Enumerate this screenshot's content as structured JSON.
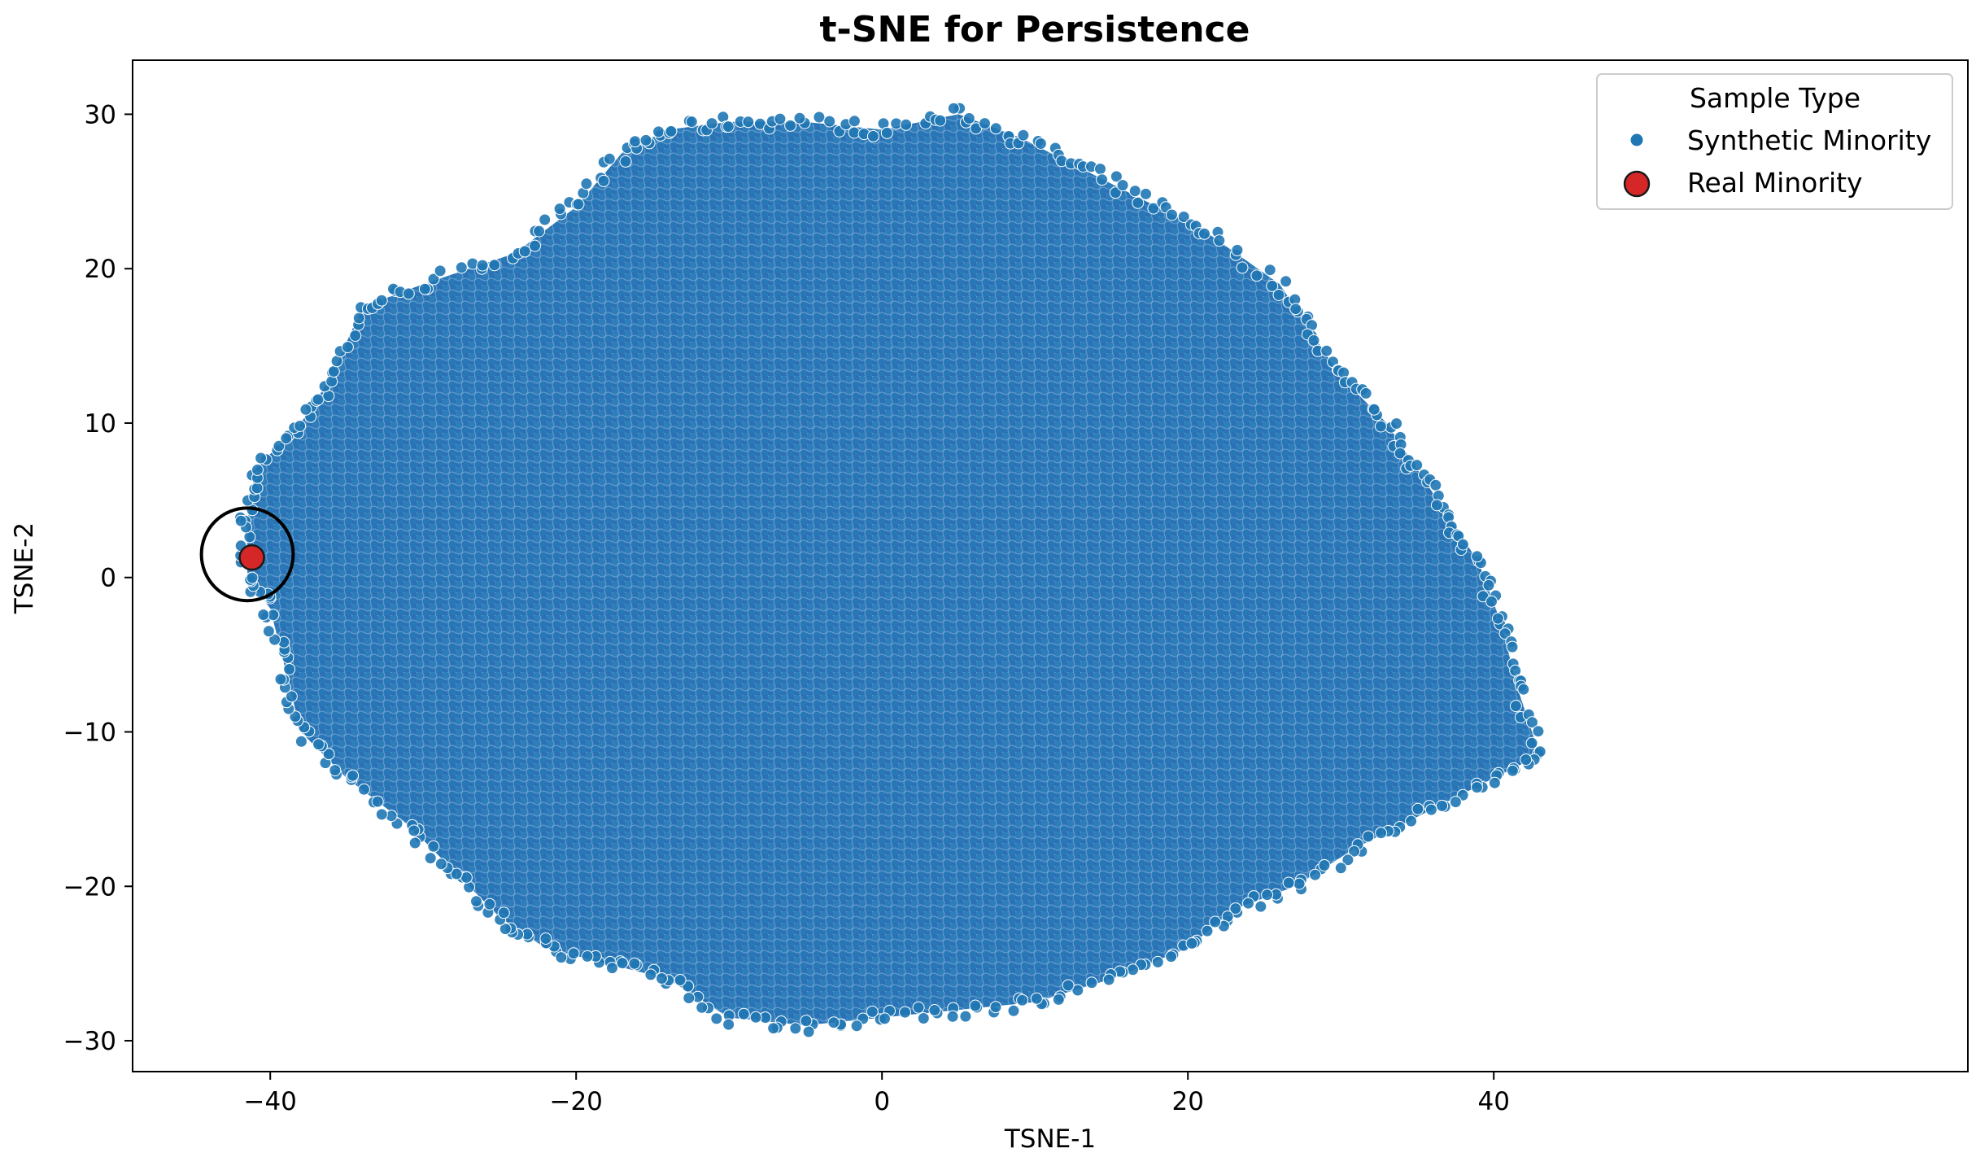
{
  "chart_data": {
    "type": "scatter",
    "title": "t-SNE for Persistence",
    "xlabel": "TSNE-1",
    "ylabel": "TSNE-2",
    "xlim": [
      -49,
      71
    ],
    "ylim": [
      -32,
      33.5
    ],
    "xticks": [
      -40,
      -20,
      0,
      20,
      40
    ],
    "yticks": [
      -30,
      -20,
      -10,
      0,
      10,
      20,
      30
    ],
    "xtick_labels": [
      "−40",
      "−20",
      "0",
      "20",
      "40"
    ],
    "ytick_labels": [
      "−30",
      "−20",
      "−10",
      "0",
      "10",
      "20",
      "30"
    ],
    "grid": false,
    "legend": {
      "title": "Sample Type",
      "placement": "top-right",
      "entries": [
        "Synthetic Minority",
        "Real Minority"
      ]
    },
    "series": [
      {
        "name": "Synthetic Minority",
        "color": "#1f77b4",
        "marker": "circle",
        "description_shape": "dense cloud",
        "boundary": [
          [
            -41.5,
            3.5
          ],
          [
            -41,
            7
          ],
          [
            -38,
            10
          ],
          [
            -36,
            13
          ],
          [
            -34,
            17.5
          ],
          [
            -30,
            19
          ],
          [
            -24,
            21
          ],
          [
            -20,
            24
          ],
          [
            -17,
            27.5
          ],
          [
            -14,
            29
          ],
          [
            -10,
            29.5
          ],
          [
            -5,
            29.5
          ],
          [
            0,
            29
          ],
          [
            5,
            30
          ],
          [
            9,
            28.5
          ],
          [
            13,
            26.5
          ],
          [
            17,
            24.5
          ],
          [
            21,
            22.5
          ],
          [
            26,
            19
          ],
          [
            28,
            16
          ],
          [
            30,
            13
          ],
          [
            33,
            10
          ],
          [
            35,
            7
          ],
          [
            37,
            4
          ],
          [
            39,
            1
          ],
          [
            40.5,
            -3
          ],
          [
            41.5,
            -7
          ],
          [
            43,
            -11.5
          ],
          [
            40,
            -13
          ],
          [
            36,
            -15
          ],
          [
            31,
            -17.5
          ],
          [
            27,
            -20
          ],
          [
            23,
            -21.5
          ],
          [
            20,
            -24
          ],
          [
            15,
            -26
          ],
          [
            10,
            -27.5
          ],
          [
            5,
            -28
          ],
          [
            0,
            -28.5
          ],
          [
            -5,
            -29
          ],
          [
            -10,
            -28.5
          ],
          [
            -14,
            -26
          ],
          [
            -18,
            -25
          ],
          [
            -22,
            -24
          ],
          [
            -25,
            -22
          ],
          [
            -28,
            -19
          ],
          [
            -31,
            -16
          ],
          [
            -35,
            -13
          ],
          [
            -38,
            -10
          ],
          [
            -39,
            -6
          ],
          [
            -40,
            -2
          ],
          [
            -41.5,
            0
          ]
        ]
      },
      {
        "name": "Real Minority",
        "color": "#d62728",
        "marker": "circle",
        "points": [
          [
            -41.2,
            1.3
          ]
        ]
      }
    ],
    "annotations": [
      {
        "type": "ellipse",
        "center": [
          -41.5,
          1.5
        ],
        "rx": 3,
        "ry": 3
      }
    ]
  }
}
